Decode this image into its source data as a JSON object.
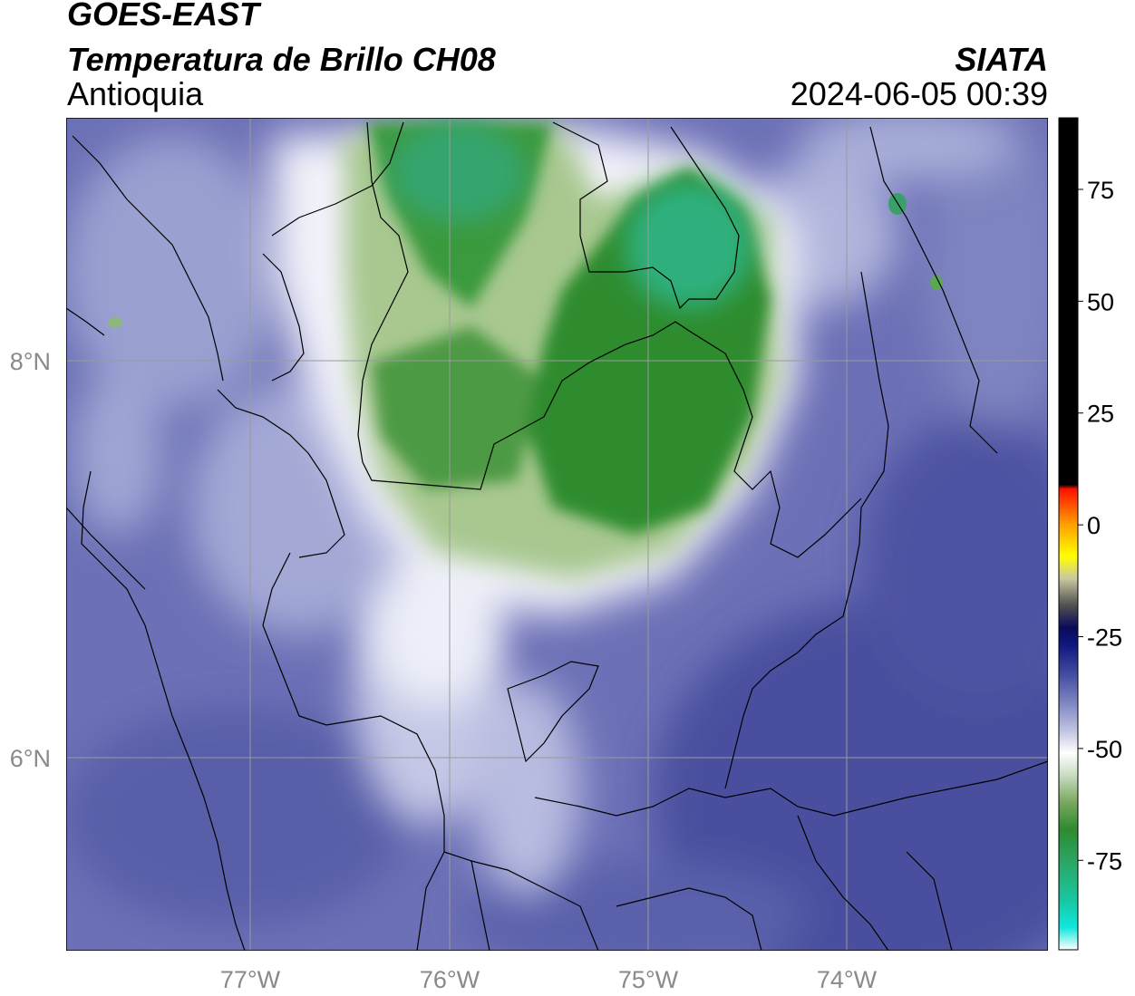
{
  "header": {
    "satellite": "GOES-EAST",
    "product": "Temperatura de Brillo CH08",
    "region": "Antioquia",
    "agency": "SIATA",
    "datetime": "2024-06-05 00:39"
  },
  "map": {
    "lon_ticks": [
      "77°W",
      "76°W",
      "75°W",
      "74°W"
    ],
    "lat_ticks": [
      "8°N",
      "6°N"
    ],
    "background_color": "#6a6fb5",
    "gridline_color": "#9a9a9a",
    "border_color": "#000000"
  },
  "colorbar": {
    "tick_labels": [
      "75",
      "50",
      "25",
      "0",
      "-25",
      "-50",
      "-75"
    ],
    "tick_values": [
      75,
      50,
      25,
      0,
      -25,
      -50,
      -75
    ],
    "range": [
      -95,
      91
    ],
    "stops": [
      {
        "value": -95,
        "color": "#ffffff"
      },
      {
        "value": -90,
        "color": "#0ee8dc"
      },
      {
        "value": -84,
        "color": "#18c7a2"
      },
      {
        "value": -76,
        "color": "#2aa86a"
      },
      {
        "value": -68,
        "color": "#2e8b2e"
      },
      {
        "value": -62,
        "color": "#7aa860"
      },
      {
        "value": -56,
        "color": "#c8dcc0"
      },
      {
        "value": -51,
        "color": "#ffffff"
      },
      {
        "value": -46,
        "color": "#c0c4e0"
      },
      {
        "value": -40,
        "color": "#8088c4"
      },
      {
        "value": -33,
        "color": "#4048a0"
      },
      {
        "value": -27,
        "color": "#101880"
      },
      {
        "value": -23,
        "color": "#0a0a5a"
      },
      {
        "value": -18,
        "color": "#505050"
      },
      {
        "value": -12,
        "color": "#c8c8a0"
      },
      {
        "value": -7,
        "color": "#ffff00"
      },
      {
        "value": 0,
        "color": "#ffa000"
      },
      {
        "value": 8,
        "color": "#ff1000"
      },
      {
        "value": 9,
        "color": "#000000"
      },
      {
        "value": 91,
        "color": "#000000"
      }
    ]
  }
}
